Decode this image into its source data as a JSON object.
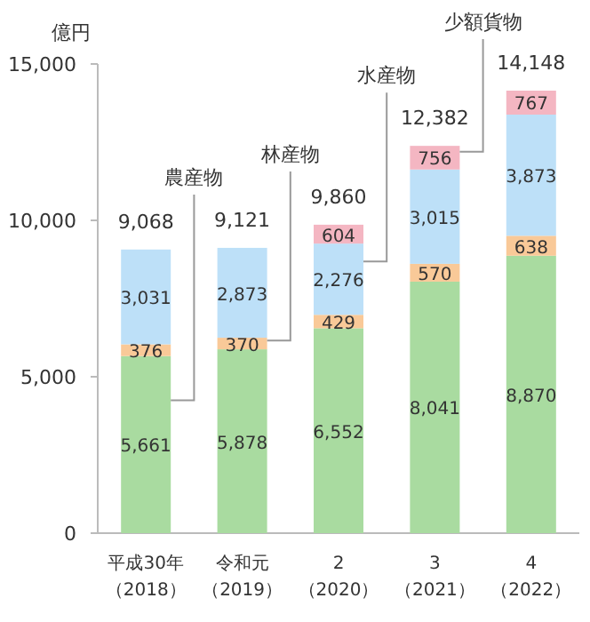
{
  "chart_data": {
    "type": "bar",
    "stacked": true,
    "ylabel": "億円",
    "categories": [
      "平成30年（2018）",
      "令和元（2019）",
      "2（2020）",
      "3（2021）",
      "4（2022）"
    ],
    "ylim": [
      0,
      15000
    ],
    "yticks": [
      {
        "value": 0,
        "label": "0"
      },
      {
        "value": 5000,
        "label": "5,000"
      },
      {
        "value": 10000,
        "label": "10,000"
      },
      {
        "value": 15000,
        "label": "15,000"
      }
    ],
    "series": [
      {
        "name": "農産物",
        "color": "#a9dba0",
        "values": [
          5661,
          5878,
          6552,
          8041,
          8870
        ],
        "value_labels": [
          "5,661",
          "5,878",
          "6,552",
          "8,041",
          "8,870"
        ]
      },
      {
        "name": "林産物",
        "color": "#f9c998",
        "values": [
          376,
          370,
          429,
          570,
          638
        ],
        "value_labels": [
          "376",
          "370",
          "429",
          "570",
          "638"
        ]
      },
      {
        "name": "水産物",
        "color": "#bde0f8",
        "values": [
          3031,
          2873,
          2276,
          3015,
          3873
        ],
        "value_labels": [
          "3,031",
          "2,873",
          "2,276",
          "3,015",
          "3,873"
        ]
      },
      {
        "name": "少額貨物",
        "color": "#f4b6c2",
        "values": [
          null,
          null,
          604,
          756,
          767
        ],
        "value_labels": [
          null,
          null,
          "604",
          "756",
          "767"
        ]
      }
    ],
    "totals": [
      "9,068",
      "9,121",
      "9,860",
      "12,382",
      "14,148"
    ]
  }
}
